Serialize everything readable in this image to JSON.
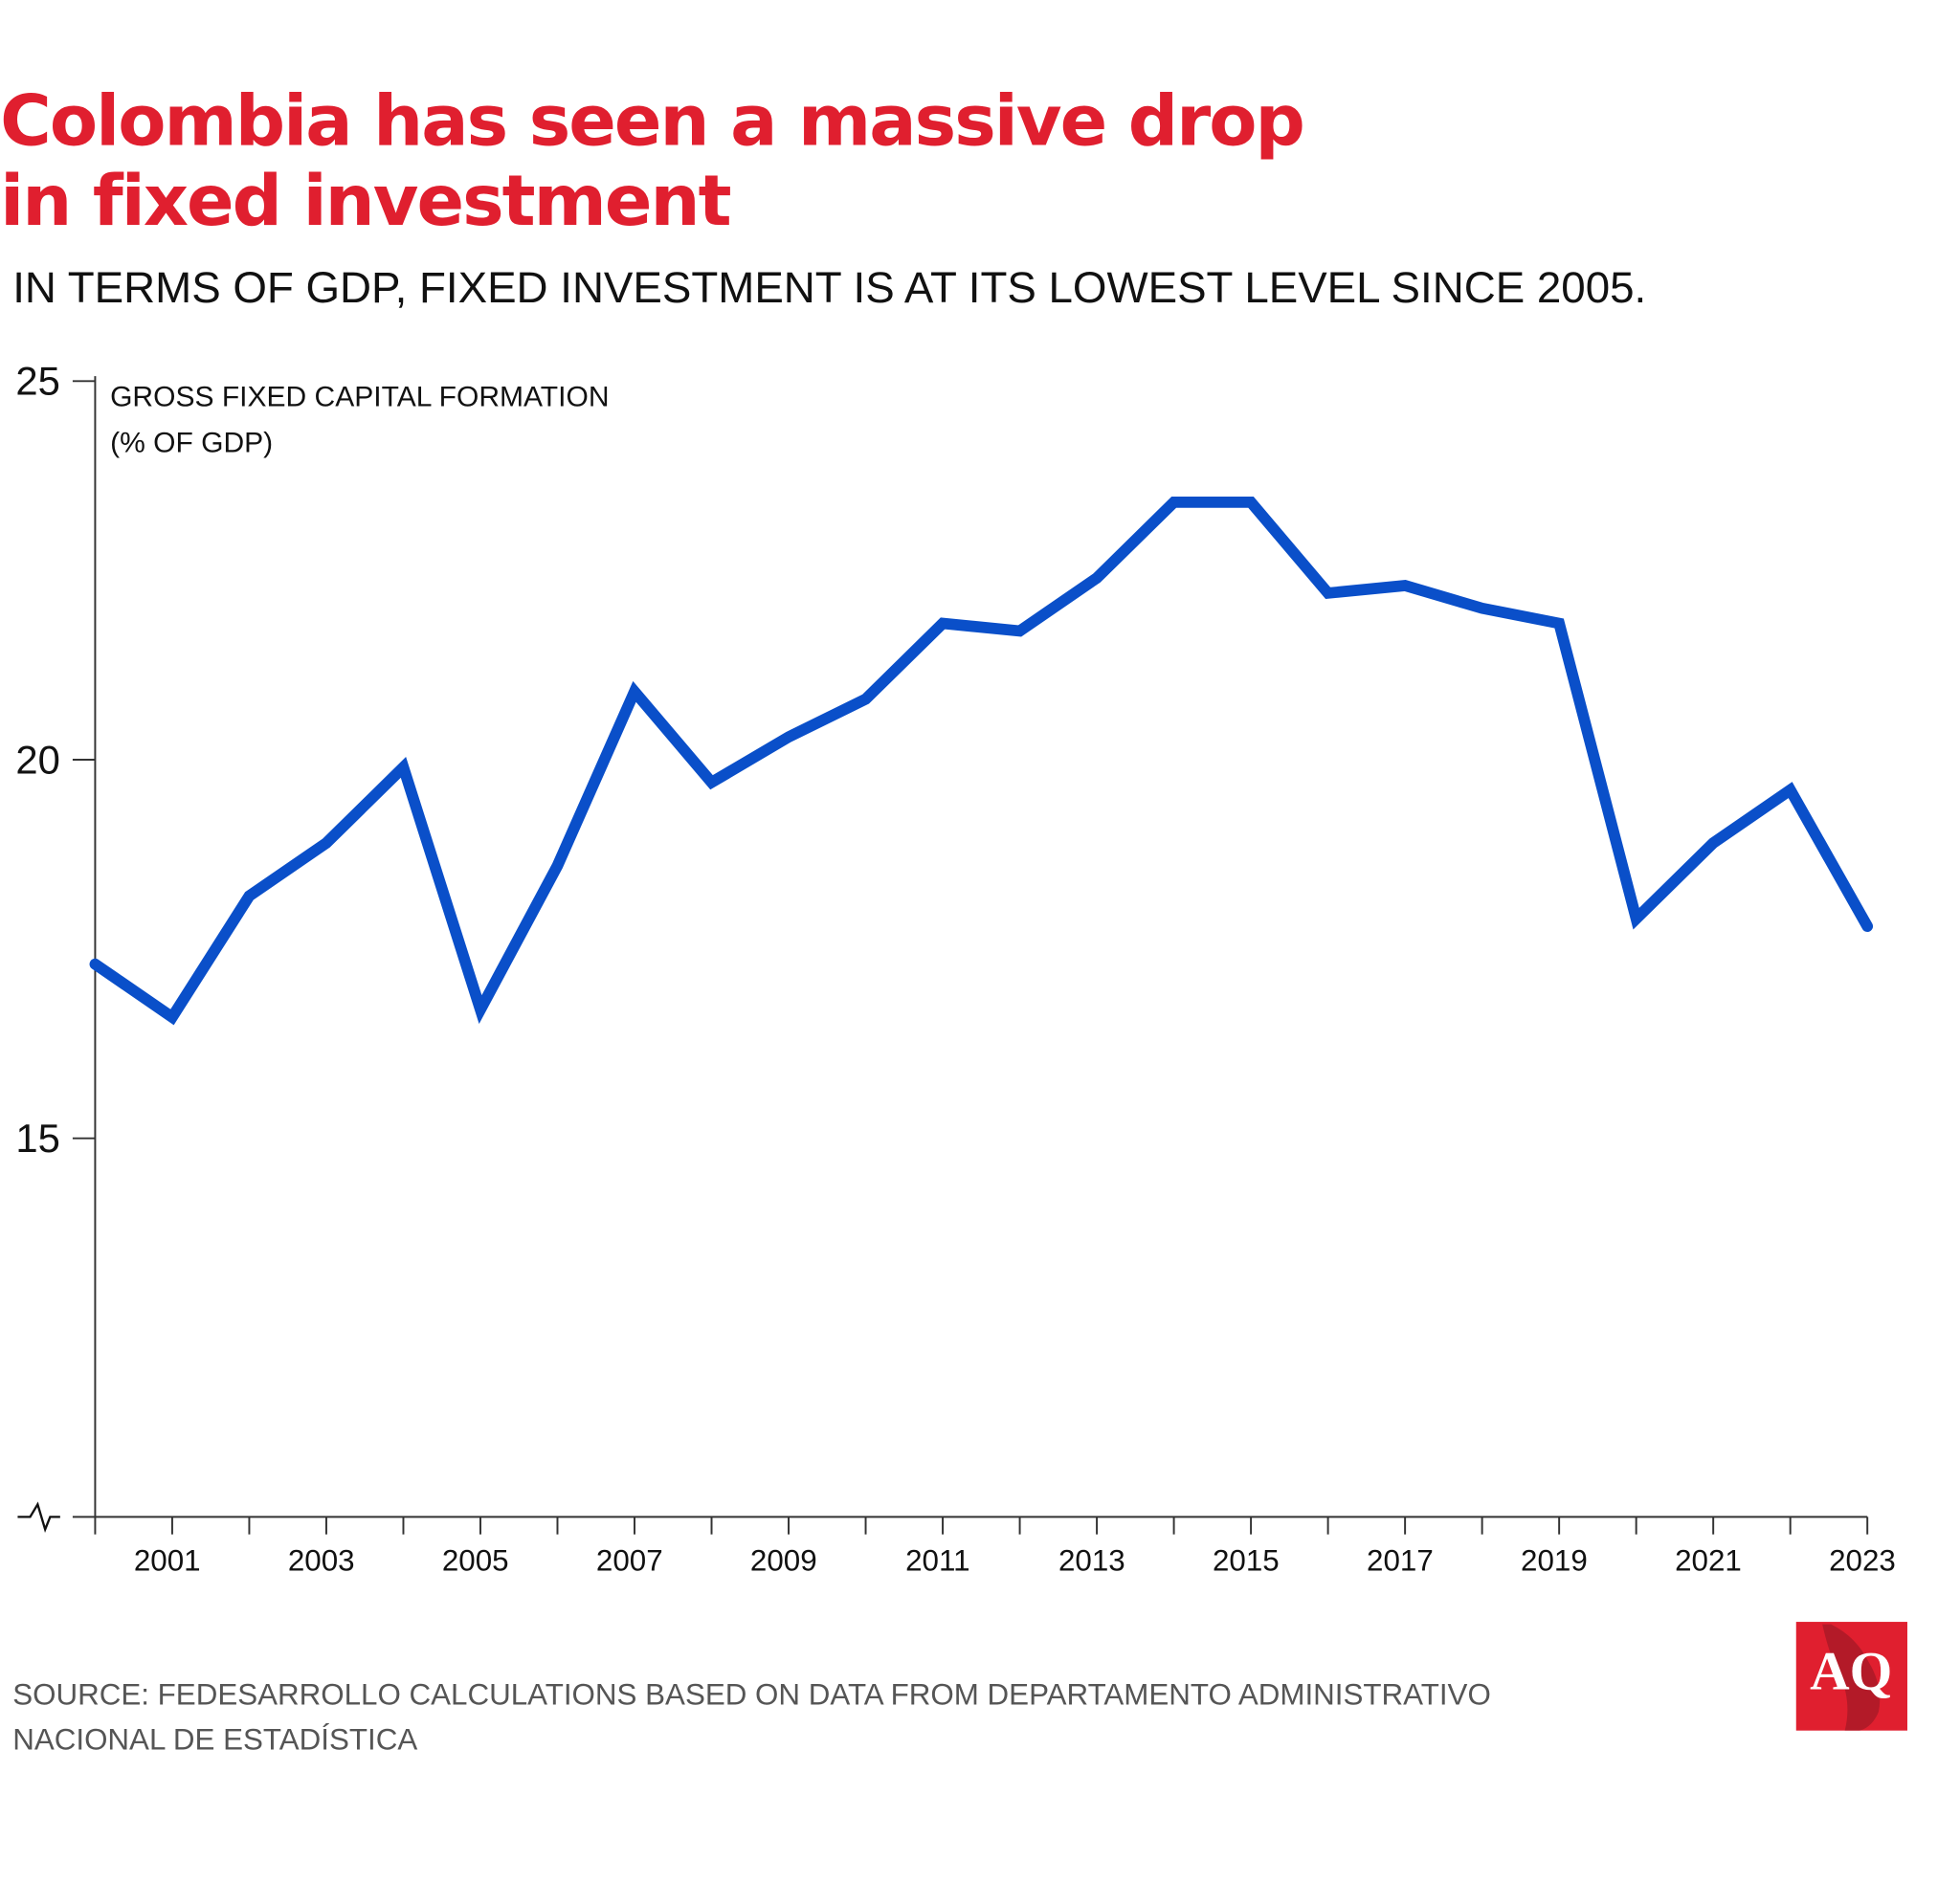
{
  "title_line1": "Colombia has seen a massive drop",
  "title_line2": "in fixed investment",
  "subtitle": "IN TERMS OF GDP, FIXED INVESTMENT IS AT ITS LOWEST LEVEL SINCE 2005.",
  "source_line1": "SOURCE: FEDESARROLLO CALCULATIONS BASED ON DATA FROM DEPARTAMENTO ADMINISTRATIVO",
  "source_line2": "NACIONAL DE ESTADÍSTICA",
  "logo_text": "AQ",
  "colors": {
    "title": "#e01f2f",
    "line": "#0a4fc9",
    "logo": "#e01f2f"
  },
  "chart_data": {
    "type": "line",
    "ylabel_line1": "GROSS FIXED CAPITAL FORMATION",
    "ylabel_line2": "(% OF GDP)",
    "ylim": [
      10,
      25
    ],
    "y_axis_break": true,
    "yticks": [
      15,
      20,
      25
    ],
    "xlim": [
      2000,
      2023
    ],
    "xtick_labels": [
      "2001",
      "2003",
      "2005",
      "2007",
      "2009",
      "2011",
      "2013",
      "2015",
      "2017",
      "2019",
      "2021",
      "2023"
    ],
    "grid": false,
    "x": [
      2000,
      2001,
      2002,
      2003,
      2004,
      2005,
      2006,
      2007,
      2008,
      2009,
      2010,
      2011,
      2012,
      2013,
      2014,
      2015,
      2016,
      2017,
      2018,
      2019,
      2020,
      2021,
      2022,
      2023
    ],
    "values": [
      17.3,
      16.6,
      18.2,
      18.9,
      19.9,
      16.7,
      18.6,
      20.9,
      19.7,
      20.3,
      20.8,
      21.8,
      21.7,
      22.4,
      23.4,
      23.4,
      22.2,
      22.3,
      22.0,
      21.8,
      17.9,
      18.9,
      19.6,
      17.8
    ]
  }
}
